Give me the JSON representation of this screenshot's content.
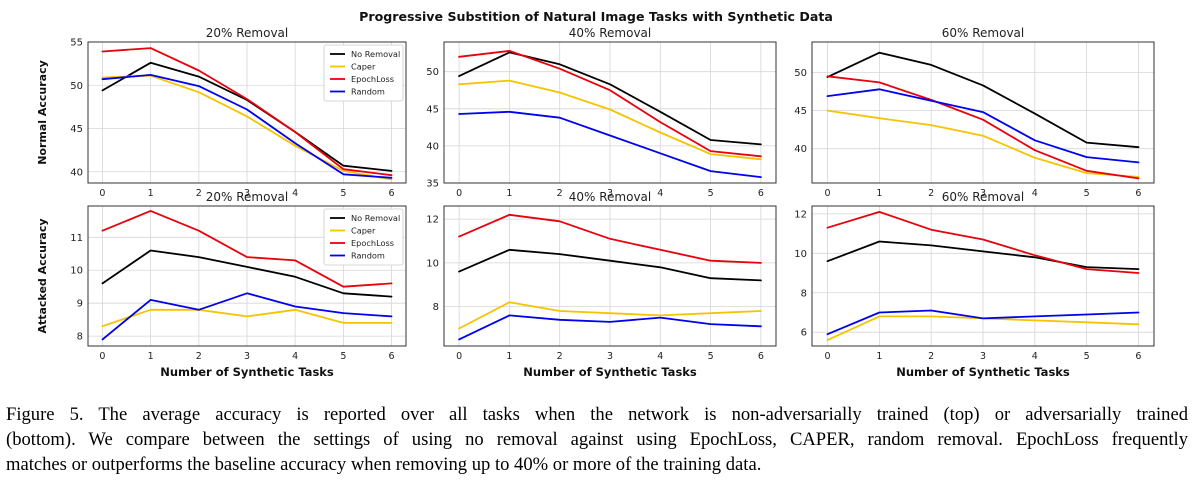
{
  "figure": {
    "suptitle": "Progressive Substition of Natural Image Tasks with Synthetic Data",
    "caption_lines": [
      "Figure 5.  The average accuracy is reported over all tasks when the network is non-adversarially trained (top) or adversarially trained",
      "(bottom). We compare between the settings of using no removal against using EpochLoss, CAPER, random removal. EpochLoss frequently",
      "matches or outperforms the baseline accuracy when removing up to 40% or more of the training data."
    ],
    "series_colors": {
      "No Removal": "#000000",
      "Caper": "#f5c400",
      "EpochLoss": "#e8000b",
      "Random": "#0000ee"
    }
  },
  "chart_data": [
    {
      "type": "line",
      "title": "20% Removal",
      "xlabel": "",
      "ylabel": "Normal Accuracy",
      "x": [
        0,
        1,
        2,
        3,
        4,
        5,
        6
      ],
      "xlim": [
        -0.3,
        6.3
      ],
      "ylim": [
        38.7,
        55
      ],
      "yticks": [
        40,
        45,
        50,
        55
      ],
      "legend": "top-right",
      "grid": true,
      "series": [
        {
          "name": "No Removal",
          "values": [
            49.4,
            52.6,
            51.0,
            48.3,
            44.6,
            40.7,
            40.1
          ]
        },
        {
          "name": "Caper",
          "values": [
            50.9,
            51.1,
            49.2,
            46.4,
            43.0,
            40.1,
            39.1
          ]
        },
        {
          "name": "EpochLoss",
          "values": [
            53.9,
            54.3,
            51.7,
            48.4,
            44.6,
            40.3,
            39.6
          ]
        },
        {
          "name": "Random",
          "values": [
            50.7,
            51.2,
            49.9,
            47.2,
            43.3,
            39.7,
            39.3
          ]
        }
      ]
    },
    {
      "type": "line",
      "title": "40% Removal",
      "xlabel": "",
      "ylabel": "",
      "x": [
        0,
        1,
        2,
        3,
        4,
        5,
        6
      ],
      "xlim": [
        -0.3,
        6.3
      ],
      "ylim": [
        35,
        54
      ],
      "yticks": [
        35,
        40,
        45,
        50
      ],
      "grid": true,
      "series": [
        {
          "name": "No Removal",
          "values": [
            49.4,
            52.6,
            51.0,
            48.3,
            44.6,
            40.8,
            40.2
          ]
        },
        {
          "name": "Caper",
          "values": [
            48.3,
            48.8,
            47.2,
            44.9,
            41.8,
            38.9,
            38.2
          ]
        },
        {
          "name": "EpochLoss",
          "values": [
            52.0,
            52.8,
            50.4,
            47.5,
            43.2,
            39.3,
            38.6
          ]
        },
        {
          "name": "Random",
          "values": [
            44.3,
            44.6,
            43.8,
            41.4,
            39.0,
            36.6,
            35.8
          ]
        }
      ]
    },
    {
      "type": "line",
      "title": "60% Removal",
      "xlabel": "",
      "ylabel": "",
      "x": [
        0,
        1,
        2,
        3,
        4,
        5,
        6
      ],
      "xlim": [
        -0.3,
        6.3
      ],
      "ylim": [
        35.5,
        54
      ],
      "yticks": [
        40,
        45,
        50
      ],
      "grid": true,
      "series": [
        {
          "name": "No Removal",
          "values": [
            49.4,
            52.6,
            51.0,
            48.3,
            44.6,
            40.8,
            40.2
          ]
        },
        {
          "name": "Caper",
          "values": [
            45.0,
            44.0,
            43.1,
            41.7,
            38.8,
            36.8,
            36.3
          ]
        },
        {
          "name": "EpochLoss",
          "values": [
            49.5,
            48.7,
            46.4,
            43.8,
            39.8,
            37.1,
            36.1
          ]
        },
        {
          "name": "Random",
          "values": [
            46.9,
            47.8,
            46.3,
            44.8,
            41.1,
            38.9,
            38.2
          ]
        }
      ]
    },
    {
      "type": "line",
      "title": "20% Removal",
      "xlabel": "Number of Synthetic Tasks",
      "ylabel": "Attacked Accuracy",
      "x": [
        0,
        1,
        2,
        3,
        4,
        5,
        6
      ],
      "xlim": [
        -0.3,
        6.3
      ],
      "ylim": [
        7.7,
        11.95
      ],
      "yticks": [
        8,
        9,
        10,
        11
      ],
      "legend": "top-right",
      "grid": true,
      "series": [
        {
          "name": "No Removal",
          "values": [
            9.6,
            10.6,
            10.4,
            10.1,
            9.8,
            9.3,
            9.2
          ]
        },
        {
          "name": "Caper",
          "values": [
            8.3,
            8.8,
            8.8,
            8.6,
            8.8,
            8.4,
            8.4
          ]
        },
        {
          "name": "EpochLoss",
          "values": [
            11.2,
            11.8,
            11.2,
            10.4,
            10.3,
            9.5,
            9.6
          ]
        },
        {
          "name": "Random",
          "values": [
            7.9,
            9.1,
            8.8,
            9.3,
            8.9,
            8.7,
            8.6
          ]
        }
      ]
    },
    {
      "type": "line",
      "title": "40% Removal",
      "xlabel": "Number of Synthetic Tasks",
      "ylabel": "",
      "x": [
        0,
        1,
        2,
        3,
        4,
        5,
        6
      ],
      "xlim": [
        -0.3,
        6.3
      ],
      "ylim": [
        6.2,
        12.6
      ],
      "yticks": [
        8,
        10,
        12
      ],
      "grid": true,
      "series": [
        {
          "name": "No Removal",
          "values": [
            9.6,
            10.6,
            10.4,
            10.1,
            9.8,
            9.3,
            9.2
          ]
        },
        {
          "name": "Caper",
          "values": [
            7.0,
            8.2,
            7.8,
            7.7,
            7.6,
            7.7,
            7.8
          ]
        },
        {
          "name": "EpochLoss",
          "values": [
            11.2,
            12.2,
            11.9,
            11.1,
            10.6,
            10.1,
            10.0
          ]
        },
        {
          "name": "Random",
          "values": [
            6.5,
            7.6,
            7.4,
            7.3,
            7.5,
            7.2,
            7.1
          ]
        }
      ]
    },
    {
      "type": "line",
      "title": "60% Removal",
      "xlabel": "Number of Synthetic Tasks",
      "ylabel": "",
      "x": [
        0,
        1,
        2,
        3,
        4,
        5,
        6
      ],
      "xlim": [
        -0.3,
        6.3
      ],
      "ylim": [
        5.3,
        12.4
      ],
      "yticks": [
        6,
        8,
        10,
        12
      ],
      "grid": true,
      "series": [
        {
          "name": "No Removal",
          "values": [
            9.6,
            10.6,
            10.4,
            10.1,
            9.8,
            9.3,
            9.2
          ]
        },
        {
          "name": "Caper",
          "values": [
            5.6,
            6.8,
            6.8,
            6.7,
            6.6,
            6.5,
            6.4
          ]
        },
        {
          "name": "EpochLoss",
          "values": [
            11.3,
            12.1,
            11.2,
            10.7,
            9.9,
            9.2,
            9.0
          ]
        },
        {
          "name": "Random",
          "values": [
            5.9,
            7.0,
            7.1,
            6.7,
            6.8,
            6.9,
            7.0
          ]
        }
      ]
    }
  ]
}
